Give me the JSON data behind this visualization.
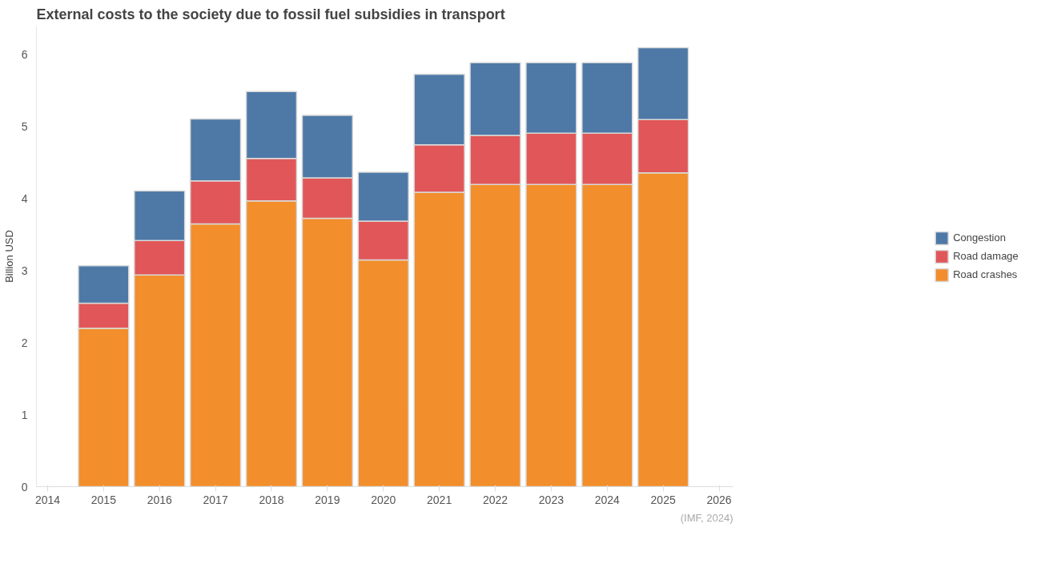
{
  "chart_data": {
    "type": "bar",
    "stacked": true,
    "title": "External costs to the society due to fossil fuel subsidies in transport",
    "ylabel": "Billion USD",
    "x": [
      2015,
      2016,
      2017,
      2018,
      2019,
      2020,
      2021,
      2022,
      2023,
      2024,
      2025
    ],
    "xlim": [
      2013.8,
      2026.25
    ],
    "xticks": [
      2014,
      2015,
      2016,
      2017,
      2018,
      2019,
      2020,
      2021,
      2022,
      2023,
      2024,
      2025,
      2026
    ],
    "ylim": [
      0,
      6.4
    ],
    "yticks": [
      0,
      1,
      2,
      3,
      4,
      5,
      6
    ],
    "grid": false,
    "legend": "right",
    "series": [
      {
        "name": "Road crashes",
        "color": "#f28e2b",
        "values": [
          2.2,
          2.94,
          3.65,
          3.97,
          3.73,
          3.15,
          4.09,
          4.2,
          4.2,
          4.2,
          4.36
        ]
      },
      {
        "name": "Road damage",
        "color": "#e15759",
        "values": [
          0.35,
          0.48,
          0.6,
          0.59,
          0.56,
          0.54,
          0.66,
          0.68,
          0.71,
          0.71,
          0.74
        ]
      },
      {
        "name": "Congestion",
        "color": "#4e79a7",
        "values": [
          0.52,
          0.69,
          0.86,
          0.93,
          0.87,
          0.68,
          0.98,
          1.01,
          0.98,
          0.98,
          1.0
        ]
      }
    ],
    "annotations": [
      "(IMF, 2024)"
    ]
  }
}
